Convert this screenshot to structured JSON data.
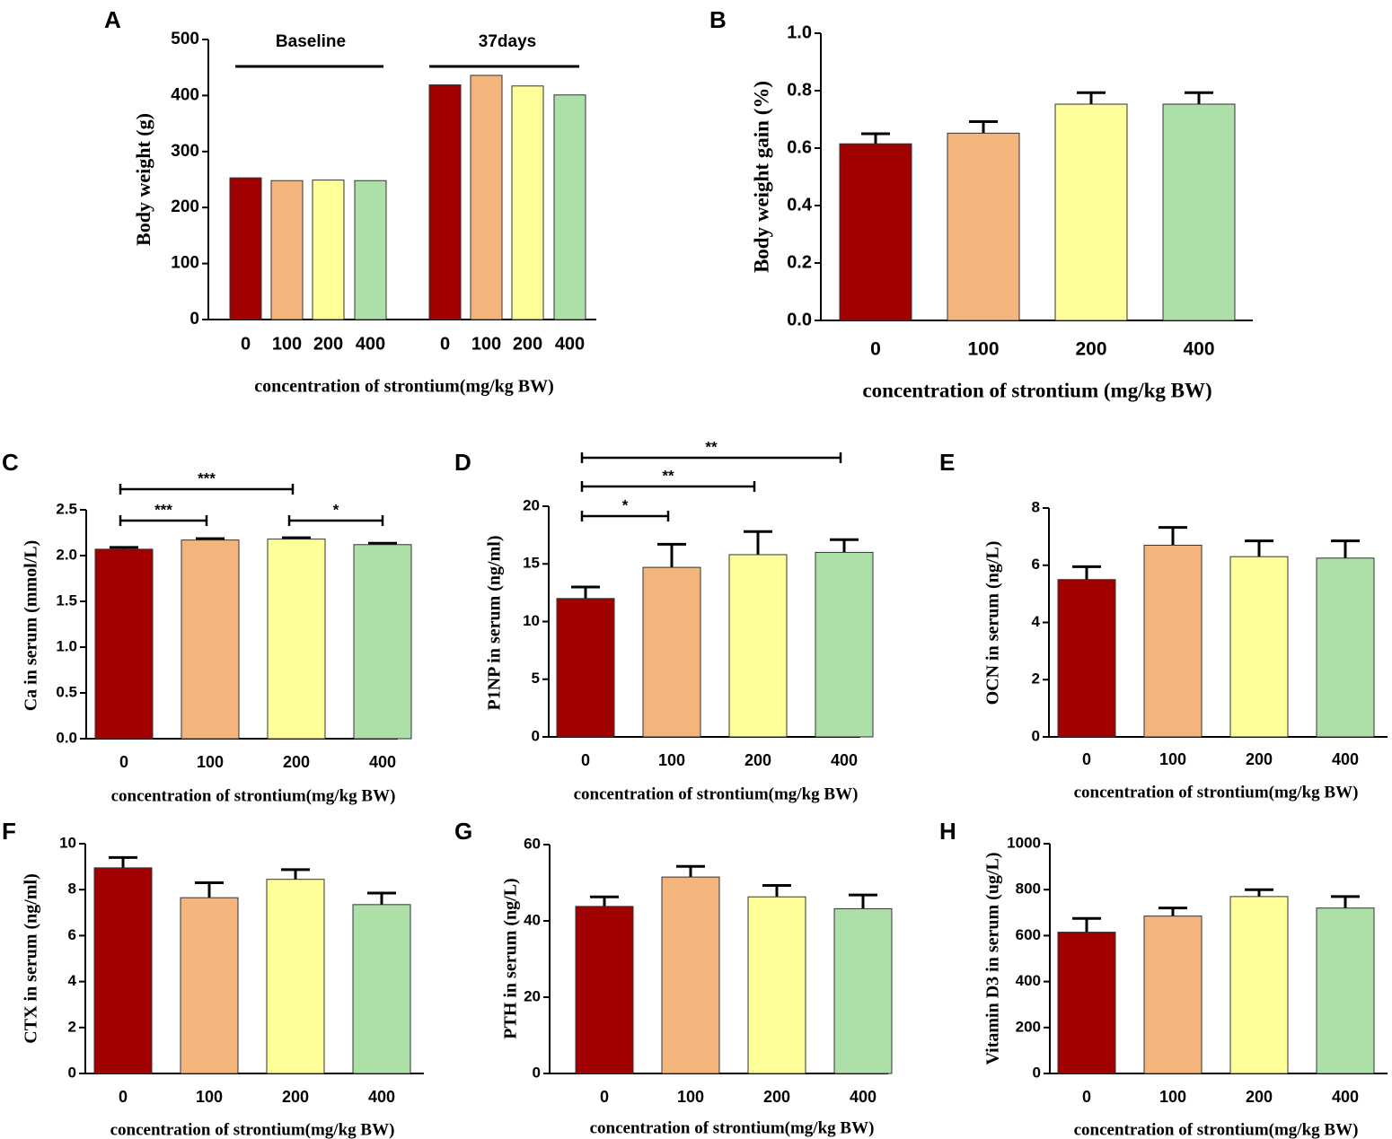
{
  "colors": [
    "#a00000",
    "#f3b57c",
    "#ffff99",
    "#addfa8"
  ],
  "chart_data": [
    {
      "id": "A",
      "letter": "A",
      "type": "bar",
      "categories": [
        "0",
        "100",
        "200",
        "400",
        "0",
        "100",
        "200",
        "400"
      ],
      "groups": [
        {
          "name": "Baseline",
          "values": [
            253,
            248,
            249,
            248
          ]
        },
        {
          "name": "37days",
          "values": [
            419,
            436,
            417,
            401
          ]
        }
      ],
      "ylabel": "Body weight (g)",
      "xlabel": "concentration of strontium(mg/kg BW)",
      "ylim": [
        0,
        500
      ],
      "yticks": [
        "0",
        "100",
        "200",
        "300",
        "400",
        "500"
      ]
    },
    {
      "id": "B",
      "letter": "B",
      "type": "bar",
      "categories": [
        "0",
        "100",
        "200",
        "400"
      ],
      "values": [
        0.615,
        0.652,
        0.753,
        0.753
      ],
      "errors": [
        0.035,
        0.04,
        0.04,
        0.04
      ],
      "ylabel": "Body weight gain (%)",
      "xlabel": "concentration of strontium (mg/kg BW)",
      "ylim": [
        0,
        1.0
      ],
      "yticks": [
        "0.0",
        "0.2",
        "0.4",
        "0.6",
        "0.8",
        "1.0"
      ]
    },
    {
      "id": "C",
      "letter": "C",
      "type": "bar",
      "categories": [
        "0",
        "100",
        "200",
        "400"
      ],
      "values": [
        2.07,
        2.17,
        2.18,
        2.12
      ],
      "errors": [
        0.02,
        0.015,
        0.015,
        0.015
      ],
      "ylabel": "Ca in serum (mmol/L)",
      "xlabel": "concentration of strontium(mg/kg BW)",
      "ylim": [
        0,
        2.5
      ],
      "yticks": [
        "0.0",
        "0.5",
        "1.0",
        "1.5",
        "2.0",
        "2.5"
      ],
      "significance": [
        {
          "from": 0,
          "to": 1,
          "label": "***"
        },
        {
          "from": 0,
          "to": 2,
          "label": "***"
        },
        {
          "from": 2,
          "to": 3,
          "label": "*"
        }
      ]
    },
    {
      "id": "D",
      "letter": "D",
      "type": "bar",
      "categories": [
        "0",
        "100",
        "200",
        "400"
      ],
      "values": [
        12.0,
        14.7,
        15.8,
        16.0
      ],
      "errors": [
        1.0,
        2.0,
        2.0,
        1.1
      ],
      "ylabel": "P1NP in serum (ng/ml)",
      "xlabel": "concentration of strontium(mg/kg BW)",
      "ylim": [
        0,
        20
      ],
      "yticks": [
        "0",
        "5",
        "10",
        "15",
        "20"
      ],
      "significance": [
        {
          "from": 0,
          "to": 1,
          "label": "*"
        },
        {
          "from": 0,
          "to": 2,
          "label": "**"
        },
        {
          "from": 0,
          "to": 3,
          "label": "**"
        }
      ]
    },
    {
      "id": "E",
      "letter": "E",
      "type": "bar",
      "categories": [
        "0",
        "100",
        "200",
        "400"
      ],
      "values": [
        5.5,
        6.7,
        6.3,
        6.25
      ],
      "errors": [
        0.45,
        0.62,
        0.55,
        0.6
      ],
      "ylabel": "OCN in serum (ng/L)",
      "xlabel": "concentration of strontium(mg/kg BW)",
      "ylim": [
        0,
        8
      ],
      "yticks": [
        "0",
        "2",
        "4",
        "6",
        "8"
      ]
    },
    {
      "id": "F",
      "letter": "F",
      "type": "bar",
      "categories": [
        "0",
        "100",
        "200",
        "400"
      ],
      "values": [
        8.95,
        7.65,
        8.45,
        7.35
      ],
      "errors": [
        0.45,
        0.65,
        0.42,
        0.5
      ],
      "ylabel": "CTX in serum (ng/ml)",
      "xlabel": "concentration of strontium(mg/kg BW)",
      "ylim": [
        0,
        10
      ],
      "yticks": [
        "0",
        "2",
        "4",
        "6",
        "8",
        "10"
      ]
    },
    {
      "id": "G",
      "letter": "G",
      "type": "bar",
      "categories": [
        "0",
        "100",
        "200",
        "400"
      ],
      "values": [
        43.8,
        51.5,
        46.3,
        43.2
      ],
      "errors": [
        2.5,
        2.8,
        3.0,
        3.6
      ],
      "ylabel": "PTH in serum (ng/L)",
      "xlabel": "concentration of strontium(mg/kg BW)",
      "ylim": [
        0,
        60
      ],
      "yticks": [
        "0",
        "20",
        "40",
        "60"
      ]
    },
    {
      "id": "H",
      "letter": "H",
      "type": "bar",
      "categories": [
        "0",
        "100",
        "200",
        "400"
      ],
      "values": [
        615,
        685,
        770,
        720
      ],
      "errors": [
        60,
        35,
        30,
        50
      ],
      "ylabel": "Vitamin D3 in serum (ug/L)",
      "xlabel": "concentration of strontium(mg/kg BW)",
      "ylim": [
        0,
        1000
      ],
      "yticks": [
        "0",
        "200",
        "400",
        "600",
        "800",
        "1000"
      ]
    }
  ]
}
